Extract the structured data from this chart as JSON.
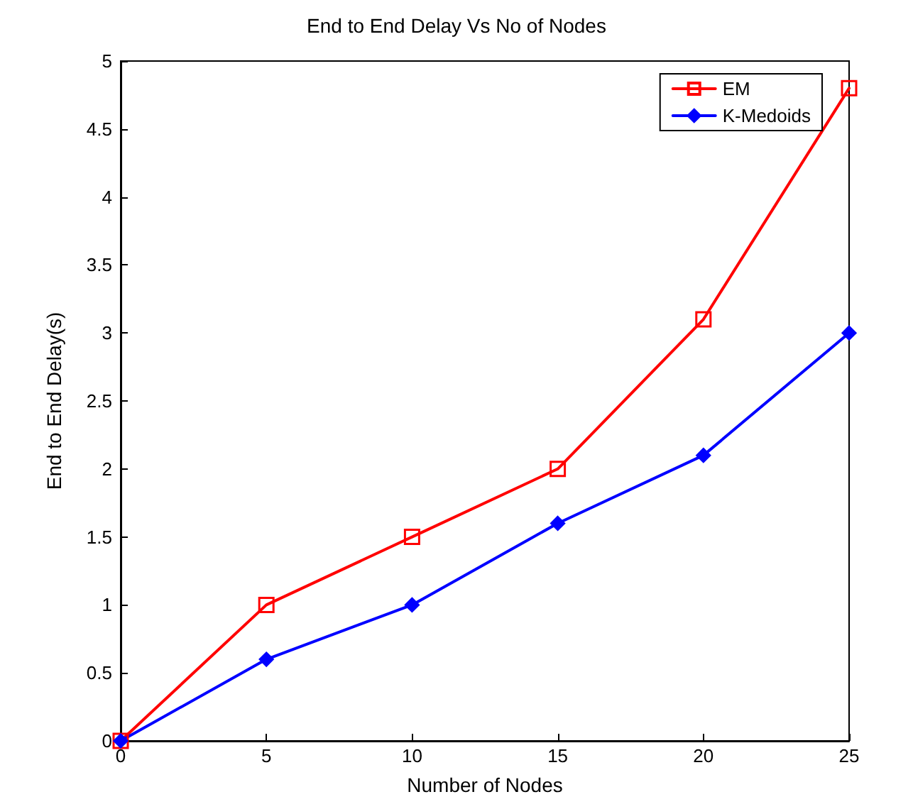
{
  "chart_data": {
    "type": "line",
    "title": "End to End Delay Vs No of Nodes",
    "xlabel": "Number of Nodes",
    "ylabel": "End to End Delay(s)",
    "x": [
      0,
      5,
      10,
      15,
      20,
      25
    ],
    "series": [
      {
        "name": "EM",
        "color": "#ff0000",
        "marker": "square",
        "values": [
          0,
          1,
          1.5,
          2,
          3.1,
          4.8
        ]
      },
      {
        "name": "K-Medoids",
        "color": "#0000ff",
        "marker": "diamond",
        "values": [
          0,
          0.6,
          1,
          1.6,
          2.1,
          3
        ]
      }
    ],
    "xlim": [
      0,
      25
    ],
    "xticks": [
      0,
      5,
      10,
      15,
      20,
      25
    ],
    "ylim": [
      0,
      5
    ],
    "yticks": [
      0,
      0.5,
      1,
      1.5,
      2,
      2.5,
      3,
      3.5,
      4,
      4.5,
      5
    ],
    "grid": false,
    "legend": "top right",
    "line_style": "solid"
  }
}
